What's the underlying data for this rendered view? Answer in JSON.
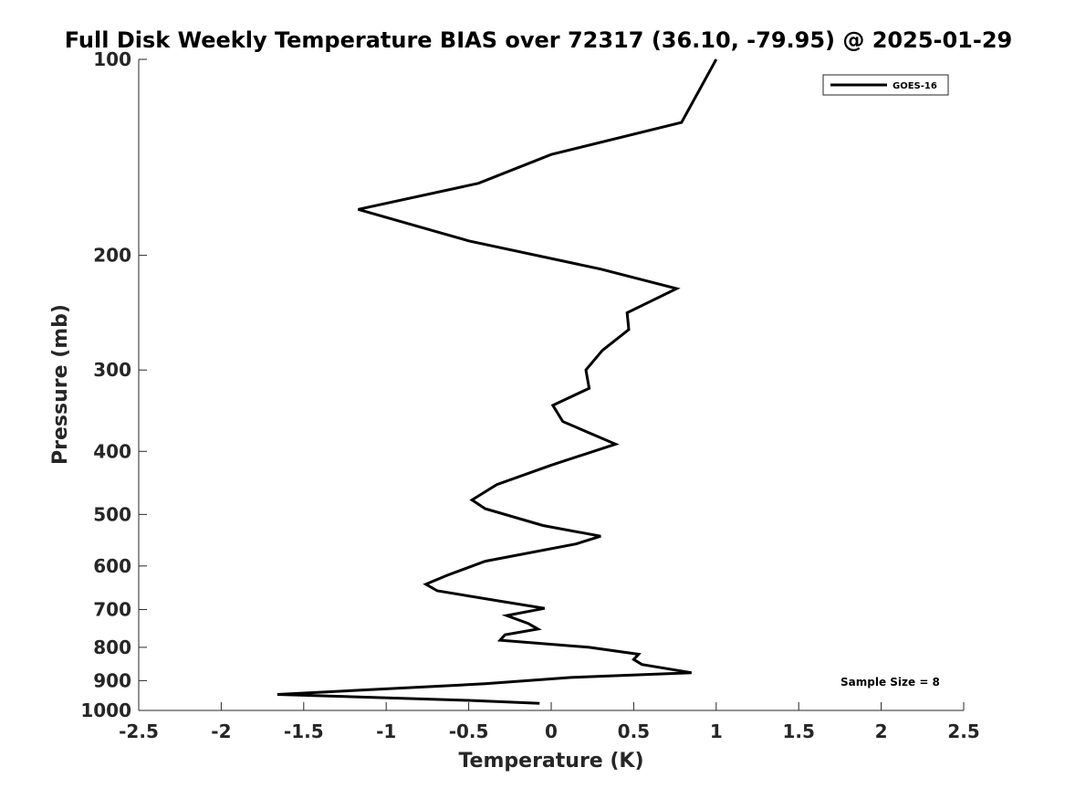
{
  "chart_data": {
    "type": "line",
    "title": "Full Disk Weekly Temperature BIAS over 72317 (36.10, -79.95) @ 2025-01-29",
    "xlabel": "Temperature (K)",
    "ylabel": "Pressure (mb)",
    "xlim": [
      -2.5,
      2.5
    ],
    "ylim": [
      1000,
      100
    ],
    "y_scale": "log",
    "y_reversed": true,
    "grid": false,
    "legend_position": "top-right",
    "x_ticks": [
      -2.5,
      -2,
      -1.5,
      -1,
      -0.5,
      0,
      0.5,
      1,
      1.5,
      2,
      2.5
    ],
    "x_tick_labels": [
      "-2.5",
      "-2",
      "-1.5",
      "-1",
      "-0.5",
      "0",
      "0.5",
      "1",
      "1.5",
      "2",
      "2.5"
    ],
    "y_ticks": [
      100,
      200,
      300,
      400,
      500,
      600,
      700,
      800,
      900,
      1000
    ],
    "y_tick_labels": [
      "100",
      "200",
      "300",
      "400",
      "500",
      "600",
      "700",
      "800",
      "900",
      "1000"
    ],
    "annotation": "Sample Size = 8",
    "series": [
      {
        "name": "GOES-16",
        "color": "#000000",
        "points": [
          {
            "x": 1.0,
            "p": 100
          },
          {
            "x": 0.79,
            "p": 125
          },
          {
            "x": 0.0,
            "p": 140
          },
          {
            "x": -0.44,
            "p": 155
          },
          {
            "x": -1.17,
            "p": 170
          },
          {
            "x": -0.5,
            "p": 190
          },
          {
            "x": 0.3,
            "p": 210
          },
          {
            "x": 0.76,
            "p": 225
          },
          {
            "x": 0.46,
            "p": 245
          },
          {
            "x": 0.47,
            "p": 260
          },
          {
            "x": 0.31,
            "p": 280
          },
          {
            "x": 0.21,
            "p": 300
          },
          {
            "x": 0.23,
            "p": 320
          },
          {
            "x": 0.01,
            "p": 340
          },
          {
            "x": 0.07,
            "p": 360
          },
          {
            "x": 0.39,
            "p": 390
          },
          {
            "x": 0.0,
            "p": 420
          },
          {
            "x": -0.33,
            "p": 450
          },
          {
            "x": -0.48,
            "p": 475
          },
          {
            "x": -0.4,
            "p": 490
          },
          {
            "x": -0.05,
            "p": 520
          },
          {
            "x": 0.3,
            "p": 540
          },
          {
            "x": 0.15,
            "p": 555
          },
          {
            "x": -0.4,
            "p": 590
          },
          {
            "x": -0.63,
            "p": 620
          },
          {
            "x": -0.76,
            "p": 640
          },
          {
            "x": -0.69,
            "p": 655
          },
          {
            "x": -0.3,
            "p": 680
          },
          {
            "x": -0.04,
            "p": 697
          },
          {
            "x": -0.27,
            "p": 715
          },
          {
            "x": -0.14,
            "p": 735
          },
          {
            "x": -0.08,
            "p": 750
          },
          {
            "x": -0.28,
            "p": 765
          },
          {
            "x": -0.31,
            "p": 780
          },
          {
            "x": 0.23,
            "p": 800
          },
          {
            "x": 0.53,
            "p": 820
          },
          {
            "x": 0.5,
            "p": 835
          },
          {
            "x": 0.55,
            "p": 850
          },
          {
            "x": 0.85,
            "p": 875
          },
          {
            "x": 0.12,
            "p": 890
          },
          {
            "x": -0.4,
            "p": 910
          },
          {
            "x": -1.66,
            "p": 945
          },
          {
            "x": -0.5,
            "p": 965
          },
          {
            "x": -0.07,
            "p": 975
          }
        ]
      }
    ]
  }
}
